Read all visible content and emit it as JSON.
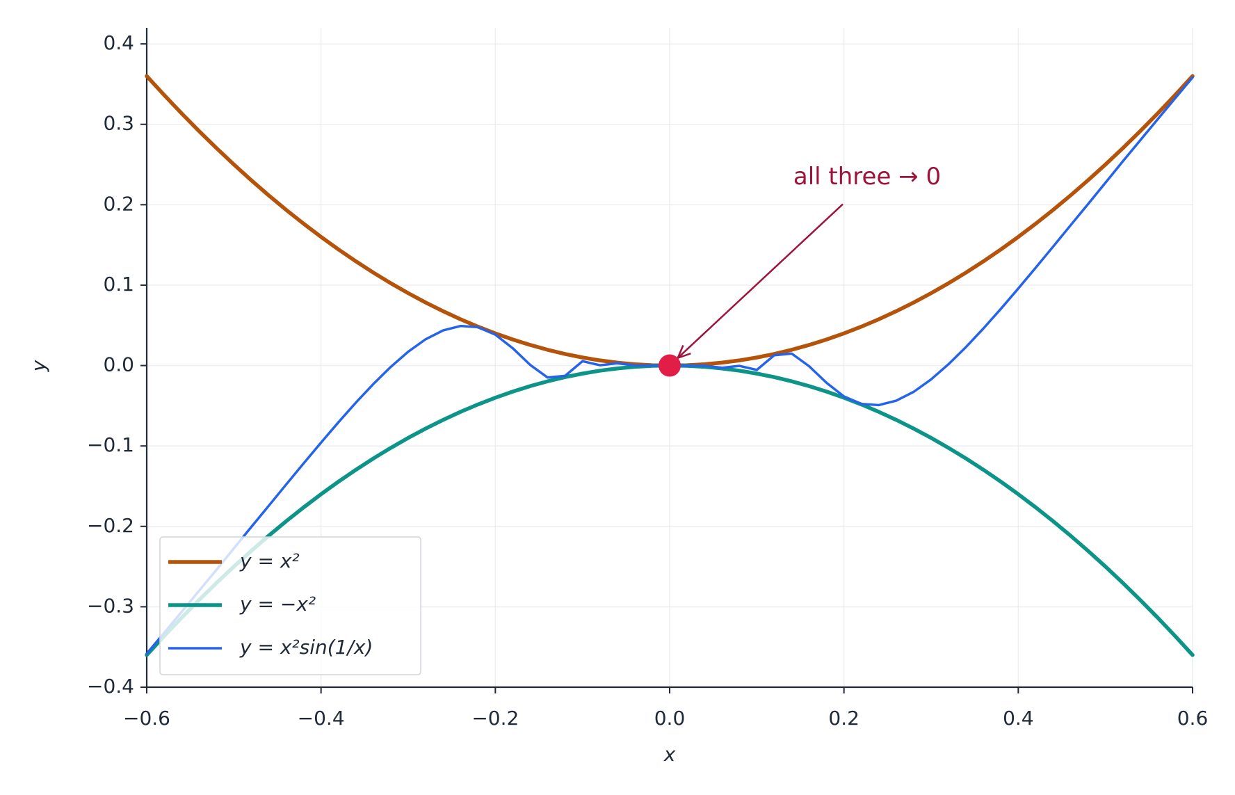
{
  "chart_data": {
    "type": "line",
    "xlabel": "x",
    "ylabel": "y",
    "xlim": [
      -0.6,
      0.6
    ],
    "ylim": [
      -0.4,
      0.42
    ],
    "xticks": [
      {
        "value": -0.6,
        "label": "−0.6"
      },
      {
        "value": -0.4,
        "label": "−0.4"
      },
      {
        "value": -0.2,
        "label": "−0.2"
      },
      {
        "value": 0,
        "label": "0.0"
      },
      0.2,
      0.4,
      0.6
    ],
    "yticks": [
      {
        "value": -0.4,
        "label": "−0.4"
      },
      {
        "value": -0.3,
        "label": "−0.3"
      },
      {
        "value": -0.2,
        "label": "−0.2"
      },
      {
        "value": -0.1,
        "label": "−0.1"
      },
      {
        "value": 0,
        "label": "0.0"
      },
      0.1,
      0.2,
      0.3,
      0.4
    ],
    "grid": true,
    "legend": "lower left",
    "x": [
      -0.6,
      -0.58,
      -0.56,
      -0.54,
      -0.52,
      -0.5,
      -0.48,
      -0.46,
      -0.44,
      -0.42,
      -0.4,
      -0.38,
      -0.36,
      -0.34,
      -0.32,
      -0.3,
      -0.28,
      -0.26,
      -0.24,
      -0.22,
      -0.2,
      -0.18,
      -0.16,
      -0.14,
      -0.12,
      -0.1,
      -0.08,
      -0.06,
      -0.04,
      -0.02,
      0,
      0.02,
      0.04,
      0.06,
      0.08,
      0.1,
      0.12,
      0.14,
      0.16,
      0.18,
      0.2,
      0.22,
      0.24,
      0.26,
      0.28,
      0.3,
      0.32,
      0.34,
      0.36,
      0.38,
      0.4,
      0.42,
      0.44,
      0.46,
      0.48,
      0.5,
      0.52,
      0.54,
      0.56,
      0.58,
      0.6
    ],
    "series": [
      {
        "name": "y = x²",
        "color": "#b45309",
        "width": 5.5,
        "values": [
          0.36,
          0.3364,
          0.3136,
          0.2916,
          0.2704,
          0.25,
          0.2304,
          0.2116,
          0.1936,
          0.1764,
          0.16,
          0.1444,
          0.1296,
          0.1156,
          0.1024,
          0.09,
          0.0784,
          0.0676,
          0.0576,
          0.0484,
          0.04,
          0.0324,
          0.0256,
          0.0196,
          0.0144,
          0.01,
          0.0064,
          0.0036,
          0.0016,
          0.0004,
          0,
          0.0004,
          0.0016,
          0.0036,
          0.0064,
          0.01,
          0.0144,
          0.0196,
          0.0256,
          0.0324,
          0.04,
          0.0484,
          0.0576,
          0.0676,
          0.0784,
          0.09,
          0.1024,
          0.1156,
          0.1296,
          0.1444,
          0.16,
          0.1764,
          0.1936,
          0.2116,
          0.2304,
          0.25,
          0.2704,
          0.2916,
          0.3136,
          0.3364,
          0.36
        ]
      },
      {
        "name": "y = −x²",
        "color": "#0d9488",
        "width": 5.5,
        "values": [
          -0.36,
          -0.3364,
          -0.3136,
          -0.2916,
          -0.2704,
          -0.25,
          -0.2304,
          -0.2116,
          -0.1936,
          -0.1764,
          -0.16,
          -0.1444,
          -0.1296,
          -0.1156,
          -0.1024,
          -0.09,
          -0.0784,
          -0.0676,
          -0.0576,
          -0.0484,
          -0.04,
          -0.0324,
          -0.0256,
          -0.0196,
          -0.0144,
          -0.01,
          -0.0064,
          -0.0036,
          -0.0016,
          -0.0004,
          0,
          -0.0004,
          -0.0016,
          -0.0036,
          -0.0064,
          -0.01,
          -0.0144,
          -0.0196,
          -0.0256,
          -0.0324,
          -0.04,
          -0.0484,
          -0.0576,
          -0.0676,
          -0.0784,
          -0.09,
          -0.1024,
          -0.1156,
          -0.1296,
          -0.1444,
          -0.16,
          -0.1764,
          -0.1936,
          -0.2116,
          -0.2304,
          -0.25,
          -0.2704,
          -0.2916,
          -0.3136,
          -0.3364,
          -0.36
        ]
      },
      {
        "name": "y = x²sin(1/x)",
        "color": "#2563eb",
        "width": 3.5,
        "values": [
          -0.3583,
          -0.3324,
          -0.3064,
          -0.2802,
          -0.254,
          -0.2273,
          -0.2007,
          -0.1744,
          -0.1479,
          -0.1217,
          -0.0958,
          -0.0705,
          -0.0461,
          -0.023,
          -0.0017,
          0.0172,
          0.0327,
          0.0437,
          0.0492,
          0.0477,
          0.0384,
          0.0215,
          0.0008,
          -0.0149,
          -0.0128,
          0.0054,
          0.0004,
          0.0029,
          0.0002,
          0.0001,
          0,
          -0.0001,
          -0.0002,
          -0.0029,
          -0.0004,
          -0.0054,
          0.0128,
          0.0149,
          -0.0008,
          -0.0215,
          -0.0384,
          -0.0477,
          -0.0492,
          -0.0437,
          -0.0327,
          -0.0172,
          0.0017,
          0.023,
          0.0461,
          0.0705,
          0.0958,
          0.1217,
          0.1479,
          0.1744,
          0.2007,
          0.2273,
          0.254,
          0.2802,
          0.3064,
          0.3324,
          0.3583
        ]
      }
    ],
    "annotation": {
      "text": "all three → 0",
      "x": 0,
      "y": 0,
      "color": "#9f1239",
      "marker_color": "#e11d48"
    }
  }
}
